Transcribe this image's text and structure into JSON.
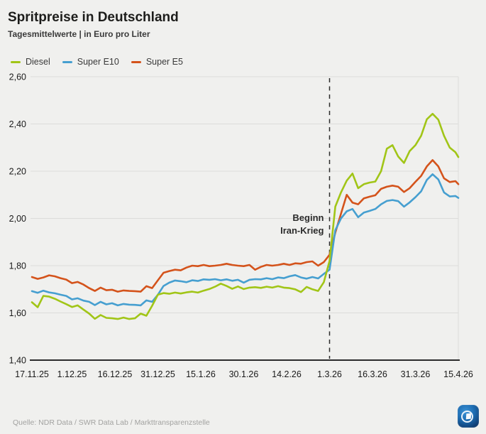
{
  "header": {
    "title": "Spritpreise in Deutschland",
    "subtitle": "Tagesmittelwerte | in Euro pro Liter"
  },
  "footer": {
    "source": "Quelle: NDR Data / SWR Data Lab / Markttransparenzstelle",
    "logo": "tagesschau-app-icon"
  },
  "colors": {
    "background": "#f0f0ee",
    "grid": "#dcdcda",
    "axis": "#2b2b2b",
    "text": "#1a1a1a",
    "muted": "#a2a2a0",
    "diesel": "#a1c517",
    "super_e10": "#469fd0",
    "super_e5": "#d4531b"
  },
  "chart_data": {
    "type": "line",
    "title": "Spritpreise in Deutschland",
    "subtitle": "Tagesmittelwerte | in Euro pro Liter",
    "xlabel": "",
    "ylabel": "Euro pro Liter",
    "ylim": [
      1.4,
      2.6
    ],
    "xlim_days": [
      0,
      149
    ],
    "grid": true,
    "legend_position": "top-left",
    "x_unit": "days since 17.11.25",
    "days": [
      0,
      2,
      4,
      6,
      8,
      10,
      12,
      14,
      16,
      18,
      20,
      22,
      24,
      26,
      28,
      30,
      32,
      34,
      36,
      38,
      40,
      42,
      44,
      46,
      48,
      50,
      52,
      54,
      56,
      58,
      60,
      62,
      64,
      66,
      68,
      70,
      72,
      74,
      76,
      78,
      80,
      82,
      84,
      86,
      88,
      90,
      92,
      94,
      96,
      98,
      100,
      102,
      104,
      106,
      108,
      110,
      112,
      114,
      116,
      118,
      120,
      122,
      124,
      126,
      128,
      130,
      132,
      134,
      136,
      138,
      140,
      142,
      144,
      146,
      148,
      149
    ],
    "series": [
      {
        "name": "Diesel",
        "color": "#a1c517",
        "values": [
          1.645,
          1.624,
          1.672,
          1.669,
          1.66,
          1.648,
          1.637,
          1.625,
          1.632,
          1.614,
          1.597,
          1.575,
          1.591,
          1.579,
          1.577,
          1.574,
          1.58,
          1.574,
          1.577,
          1.597,
          1.588,
          1.63,
          1.677,
          1.684,
          1.681,
          1.686,
          1.682,
          1.687,
          1.69,
          1.686,
          1.694,
          1.701,
          1.711,
          1.724,
          1.714,
          1.702,
          1.712,
          1.701,
          1.707,
          1.709,
          1.706,
          1.711,
          1.707,
          1.713,
          1.707,
          1.705,
          1.7,
          1.688,
          1.71,
          1.7,
          1.693,
          1.73,
          1.82,
          2.05,
          2.11,
          2.16,
          2.19,
          2.128,
          2.145,
          2.152,
          2.156,
          2.2,
          2.295,
          2.31,
          2.262,
          2.235,
          2.285,
          2.31,
          2.35,
          2.42,
          2.443,
          2.418,
          2.35,
          2.3,
          2.28,
          2.26
        ]
      },
      {
        "name": "Super E10",
        "color": "#469fd0",
        "values": [
          1.692,
          1.685,
          1.694,
          1.687,
          1.683,
          1.677,
          1.672,
          1.657,
          1.662,
          1.652,
          1.647,
          1.633,
          1.647,
          1.636,
          1.641,
          1.632,
          1.638,
          1.635,
          1.634,
          1.632,
          1.653,
          1.647,
          1.677,
          1.714,
          1.728,
          1.737,
          1.734,
          1.73,
          1.738,
          1.735,
          1.742,
          1.74,
          1.743,
          1.738,
          1.742,
          1.736,
          1.74,
          1.728,
          1.74,
          1.743,
          1.742,
          1.747,
          1.743,
          1.75,
          1.747,
          1.755,
          1.76,
          1.75,
          1.745,
          1.752,
          1.746,
          1.765,
          1.783,
          1.95,
          2.0,
          2.03,
          2.04,
          2.005,
          2.025,
          2.032,
          2.04,
          2.06,
          2.074,
          2.078,
          2.073,
          2.05,
          2.068,
          2.09,
          2.115,
          2.163,
          2.187,
          2.165,
          2.11,
          2.093,
          2.095,
          2.087
        ]
      },
      {
        "name": "Super E5",
        "color": "#d4531b",
        "values": [
          1.752,
          1.744,
          1.75,
          1.759,
          1.755,
          1.747,
          1.741,
          1.726,
          1.731,
          1.72,
          1.705,
          1.693,
          1.707,
          1.696,
          1.698,
          1.69,
          1.695,
          1.693,
          1.692,
          1.69,
          1.713,
          1.705,
          1.738,
          1.77,
          1.777,
          1.783,
          1.78,
          1.792,
          1.8,
          1.798,
          1.803,
          1.798,
          1.8,
          1.803,
          1.808,
          1.803,
          1.8,
          1.798,
          1.803,
          1.783,
          1.795,
          1.803,
          1.8,
          1.803,
          1.808,
          1.803,
          1.81,
          1.808,
          1.815,
          1.818,
          1.8,
          1.815,
          1.846,
          1.94,
          2.02,
          2.1,
          2.067,
          2.06,
          2.085,
          2.092,
          2.098,
          2.125,
          2.134,
          2.139,
          2.134,
          2.112,
          2.128,
          2.155,
          2.18,
          2.22,
          2.247,
          2.22,
          2.17,
          2.154,
          2.158,
          2.145
        ]
      }
    ],
    "x_ticks": [
      {
        "label": "17.11.25",
        "day": 0
      },
      {
        "label": "1.12.25",
        "day": 14
      },
      {
        "label": "16.12.25",
        "day": 29
      },
      {
        "label": "31.12.25",
        "day": 44
      },
      {
        "label": "15.1.26",
        "day": 59
      },
      {
        "label": "30.1.26",
        "day": 74
      },
      {
        "label": "14.2.26",
        "day": 89
      },
      {
        "label": "1.3.26",
        "day": 104
      },
      {
        "label": "16.3.26",
        "day": 119
      },
      {
        "label": "31.3.26",
        "day": 134
      },
      {
        "label": "15.4.26",
        "day": 149
      }
    ],
    "y_ticks": [
      {
        "label": "1,40",
        "value": 1.4
      },
      {
        "label": "1,60",
        "value": 1.6
      },
      {
        "label": "1,80",
        "value": 1.8
      },
      {
        "label": "2,00",
        "value": 2.0
      },
      {
        "label": "2,20",
        "value": 2.2
      },
      {
        "label": "2,40",
        "value": 2.4
      },
      {
        "label": "2,60",
        "value": 2.6
      }
    ],
    "event_line": {
      "day": 104,
      "label": [
        "Beginn",
        "Iran-Krieg"
      ]
    }
  }
}
